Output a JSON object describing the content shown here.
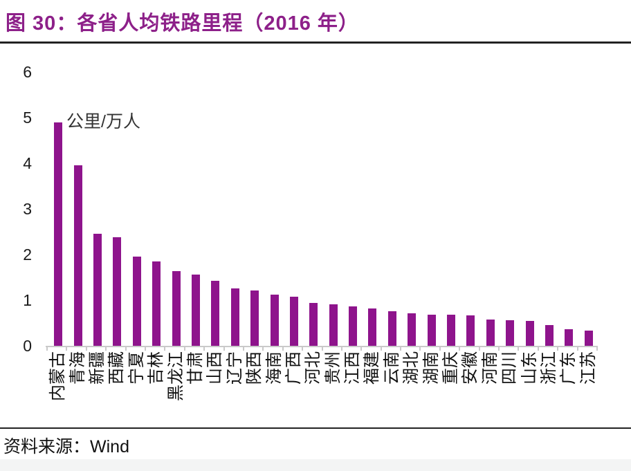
{
  "header": {
    "title": "图 30：各省人均铁路里程（2016 年）"
  },
  "chart_data": {
    "type": "bar",
    "title": "各省人均铁路里程（2016 年）",
    "unit_label": "公里/万人",
    "xlabel": "",
    "ylabel": "公里/万人",
    "categories": [
      "内蒙古",
      "青海",
      "新疆",
      "西藏",
      "宁夏",
      "吉林",
      "黑龙江",
      "甘肃",
      "山西",
      "辽宁",
      "陕西",
      "海南",
      "广西",
      "河北",
      "贵州",
      "江西",
      "福建",
      "云南",
      "湖北",
      "湖南",
      "重庆",
      "安徽",
      "河南",
      "四川",
      "山东",
      "浙江",
      "广东",
      "江苏"
    ],
    "values": [
      4.9,
      3.95,
      2.45,
      2.38,
      1.95,
      1.85,
      1.64,
      1.56,
      1.42,
      1.26,
      1.21,
      1.12,
      1.08,
      0.94,
      0.91,
      0.86,
      0.82,
      0.76,
      0.71,
      0.68,
      0.68,
      0.67,
      0.58,
      0.56,
      0.55,
      0.45,
      0.36,
      0.33
    ],
    "ylim": [
      0,
      6
    ],
    "yticks": [
      0,
      1,
      2,
      3,
      4,
      5,
      6
    ],
    "grid": false,
    "legend": false,
    "colors": {
      "bar": "#8E148C",
      "title": "#8D2089",
      "axis": "#c9c9c9"
    }
  },
  "footer": {
    "label": "资料来源：",
    "source": "Wind"
  }
}
